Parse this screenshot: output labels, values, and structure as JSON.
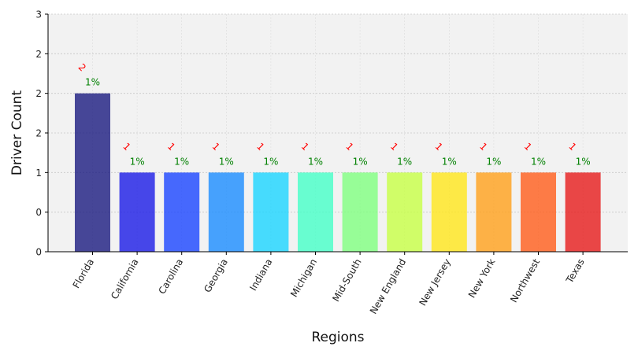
{
  "chart_data": {
    "type": "bar",
    "xlabel": "Regions",
    "ylabel": "Driver Count",
    "categories": [
      "Florida",
      "California",
      "Carolina",
      "Georgia",
      "Indiana",
      "Michigan",
      "Mid-South",
      "New England",
      "New Jersey",
      "New York",
      "Northwest",
      "Texas"
    ],
    "values": [
      2,
      1,
      1,
      1,
      1,
      1,
      1,
      1,
      1,
      1,
      1,
      1
    ],
    "count_labels": [
      "2",
      "1",
      "1",
      "1",
      "1",
      "1",
      "1",
      "1",
      "1",
      "1",
      "1",
      "1"
    ],
    "percent_labels": [
      "1%",
      "1%",
      "1%",
      "1%",
      "1%",
      "1%",
      "1%",
      "1%",
      "1%",
      "1%",
      "1%",
      "1%"
    ],
    "colors": [
      "#1a1a80",
      "#1a1ae6",
      "#1a45ff",
      "#1a8cff",
      "#1ad5ff",
      "#45ffc7",
      "#80ff80",
      "#c7ff45",
      "#ffe61a",
      "#ffa01a",
      "#ff5c1a",
      "#e61a1a"
    ],
    "ylim": [
      0,
      3
    ],
    "y_ticks": [
      0,
      0.5,
      1,
      1.5,
      2,
      2.5,
      3
    ],
    "y_tick_labels": [
      "0",
      "0",
      "1",
      "2",
      "2",
      "2",
      "3"
    ],
    "grid": true,
    "plot_background": "#f2f2f2"
  }
}
